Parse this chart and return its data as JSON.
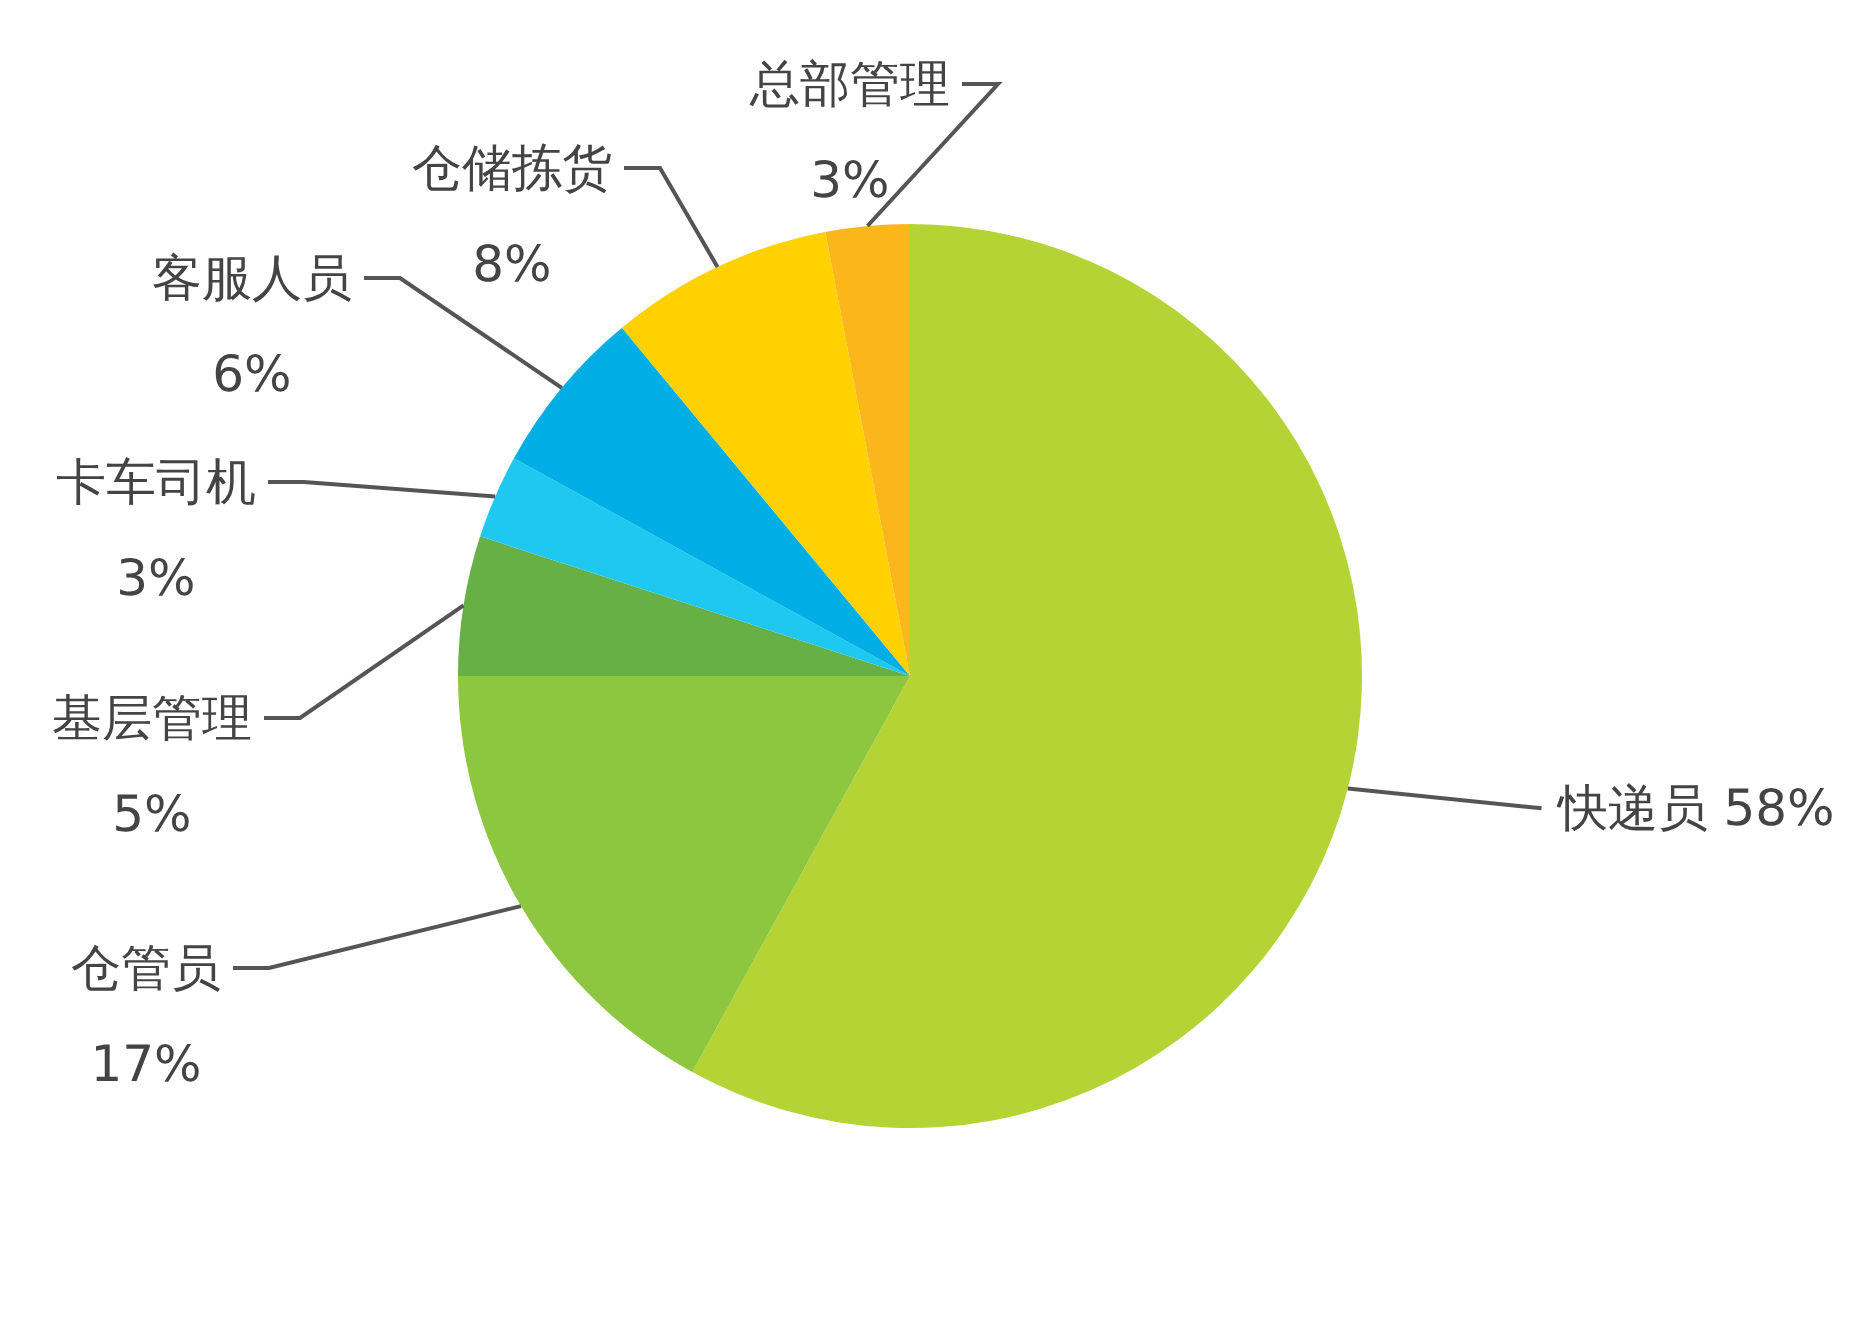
{
  "chart_data": {
    "type": "pie",
    "categories": [
      "快递员",
      "仓管员",
      "基层管理",
      "卡车司机",
      "客服人员",
      "仓储拣货",
      "总部管理"
    ],
    "values": [
      58,
      17,
      5,
      3,
      6,
      8,
      3
    ],
    "colors": [
      "#b5d334",
      "#8dc63f",
      "#66b046",
      "#1ec8f0",
      "#00aee6",
      "#ffd100",
      "#fbb61c"
    ],
    "value_labels": [
      "58%",
      "17%",
      "5%",
      "3%",
      "6%",
      "8%",
      "3%"
    ]
  }
}
